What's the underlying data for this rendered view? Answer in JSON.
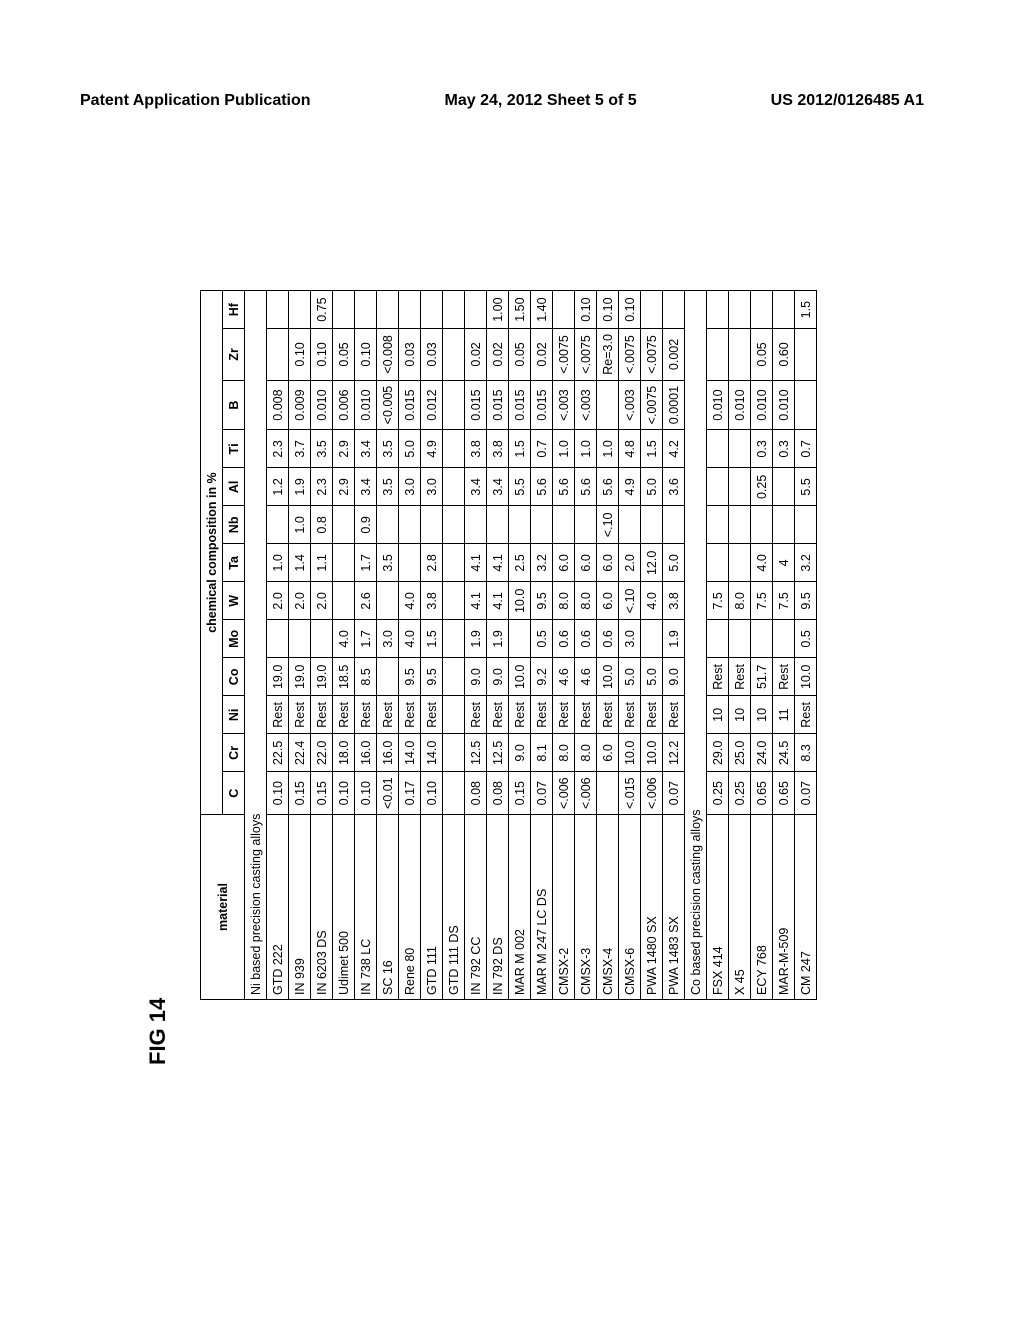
{
  "header": {
    "left": "Patent Application Publication",
    "center": "May 24, 2012  Sheet 5 of 5",
    "right": "US 2012/0126485 A1"
  },
  "figure_label": "FIG 14",
  "table": {
    "super_header": "chemical composition in %",
    "columns": [
      "material",
      "C",
      "Cr",
      "Ni",
      "Co",
      "Mo",
      "W",
      "Ta",
      "Nb",
      "Al",
      "Ti",
      "B",
      "Zr",
      "Hf"
    ],
    "sections": [
      {
        "title": "Ni based precision casting alloys",
        "rows": [
          {
            "material": "GTD 222",
            "C": "0.10",
            "Cr": "22.5",
            "Ni": "Rest",
            "Co": "19.0",
            "Mo": "",
            "W": "2.0",
            "Ta": "1.0",
            "Nb": "",
            "Al": "1.2",
            "Ti": "2.3",
            "B": "0.008",
            "Zr": "",
            "Hf": ""
          },
          {
            "material": "IN 939",
            "C": "0.15",
            "Cr": "22.4",
            "Ni": "Rest",
            "Co": "19.0",
            "Mo": "",
            "W": "2.0",
            "Ta": "1.4",
            "Nb": "1.0",
            "Al": "1.9",
            "Ti": "3.7",
            "B": "0.009",
            "Zr": "0.10",
            "Hf": ""
          },
          {
            "material": "IN 6203 DS",
            "C": "0.15",
            "Cr": "22.0",
            "Ni": "Rest",
            "Co": "19.0",
            "Mo": "",
            "W": "2.0",
            "Ta": "1.1",
            "Nb": "0.8",
            "Al": "2.3",
            "Ti": "3.5",
            "B": "0.010",
            "Zr": "0.10",
            "Hf": "0.75"
          },
          {
            "material": "Udimet 500",
            "C": "0.10",
            "Cr": "18.0",
            "Ni": "Rest",
            "Co": "18.5",
            "Mo": "4.0",
            "W": "",
            "Ta": "",
            "Nb": "",
            "Al": "2.9",
            "Ti": "2.9",
            "B": "0.006",
            "Zr": "0.05",
            "Hf": ""
          },
          {
            "material": "IN 738 LC",
            "C": "0.10",
            "Cr": "16.0",
            "Ni": "Rest",
            "Co": "8.5",
            "Mo": "1.7",
            "W": "2.6",
            "Ta": "1.7",
            "Nb": "0.9",
            "Al": "3.4",
            "Ti": "3.4",
            "B": "0.010",
            "Zr": "0.10",
            "Hf": ""
          },
          {
            "material": "SC 16",
            "C": "<0.01",
            "Cr": "16.0",
            "Ni": "Rest",
            "Co": "",
            "Mo": "3.0",
            "W": "",
            "Ta": "3.5",
            "Nb": "",
            "Al": "3.5",
            "Ti": "3.5",
            "B": "<0.005",
            "Zr": "<0.008",
            "Hf": ""
          },
          {
            "material": "Rene 80",
            "C": "0.17",
            "Cr": "14.0",
            "Ni": "Rest",
            "Co": "9.5",
            "Mo": "4.0",
            "W": "4.0",
            "Ta": "",
            "Nb": "",
            "Al": "3.0",
            "Ti": "5.0",
            "B": "0.015",
            "Zr": "0.03",
            "Hf": ""
          },
          {
            "material": "GTD 111",
            "C": "0.10",
            "Cr": "14.0",
            "Ni": "Rest",
            "Co": "9.5",
            "Mo": "1.5",
            "W": "3.8",
            "Ta": "2.8",
            "Nb": "",
            "Al": "3.0",
            "Ti": "4.9",
            "B": "0.012",
            "Zr": "0.03",
            "Hf": ""
          },
          {
            "material": "GTD 111 DS",
            "C": "",
            "Cr": "",
            "Ni": "",
            "Co": "",
            "Mo": "",
            "W": "",
            "Ta": "",
            "Nb": "",
            "Al": "",
            "Ti": "",
            "B": "",
            "Zr": "",
            "Hf": ""
          },
          {
            "material": "IN 792 CC",
            "C": "0.08",
            "Cr": "12.5",
            "Ni": "Rest",
            "Co": "9.0",
            "Mo": "1.9",
            "W": "4.1",
            "Ta": "4.1",
            "Nb": "",
            "Al": "3.4",
            "Ti": "3.8",
            "B": "0.015",
            "Zr": "0.02",
            "Hf": ""
          },
          {
            "material": "IN 792 DS",
            "C": "0.08",
            "Cr": "12.5",
            "Ni": "Rest",
            "Co": "9.0",
            "Mo": "1.9",
            "W": "4.1",
            "Ta": "4.1",
            "Nb": "",
            "Al": "3.4",
            "Ti": "3.8",
            "B": "0.015",
            "Zr": "0.02",
            "Hf": "1.00"
          },
          {
            "material": "MAR M 002",
            "C": "0.15",
            "Cr": "9.0",
            "Ni": "Rest",
            "Co": "10.0",
            "Mo": "",
            "W": "10.0",
            "Ta": "2.5",
            "Nb": "",
            "Al": "5.5",
            "Ti": "1.5",
            "B": "0.015",
            "Zr": "0.05",
            "Hf": "1.50"
          },
          {
            "material": "MAR M 247 LC DS",
            "C": "0.07",
            "Cr": "8.1",
            "Ni": "Rest",
            "Co": "9.2",
            "Mo": "0.5",
            "W": "9.5",
            "Ta": "3.2",
            "Nb": "",
            "Al": "5.6",
            "Ti": "0.7",
            "B": "0.015",
            "Zr": "0.02",
            "Hf": "1.40"
          },
          {
            "material": "CMSX-2",
            "C": "<.006",
            "Cr": "8.0",
            "Ni": "Rest",
            "Co": "4.6",
            "Mo": "0.6",
            "W": "8.0",
            "Ta": "6.0",
            "Nb": "",
            "Al": "5.6",
            "Ti": "1.0",
            "B": "<.003",
            "Zr": "<.0075",
            "Hf": ""
          },
          {
            "material": "CMSX-3",
            "C": "<.006",
            "Cr": "8.0",
            "Ni": "Rest",
            "Co": "4.6",
            "Mo": "0.6",
            "W": "8.0",
            "Ta": "6.0",
            "Nb": "",
            "Al": "5.6",
            "Ti": "1.0",
            "B": "<.003",
            "Zr": "<.0075",
            "Hf": "0.10"
          },
          {
            "material": "CMSX-4",
            "C": "",
            "Cr": "6.0",
            "Ni": "Rest",
            "Co": "10.0",
            "Mo": "0.6",
            "W": "6.0",
            "Ta": "6.0",
            "Nb": "<.10",
            "Al": "5.6",
            "Ti": "1.0",
            "B": "",
            "Zr": "Re=3.0",
            "Hf": "0.10"
          },
          {
            "material": "CMSX-6",
            "C": "<.015",
            "Cr": "10.0",
            "Ni": "Rest",
            "Co": "5.0",
            "Mo": "3.0",
            "W": "<.10",
            "Ta": "2.0",
            "Nb": "",
            "Al": "4.9",
            "Ti": "4.8",
            "B": "<.003",
            "Zr": "<.0075",
            "Hf": "0.10"
          },
          {
            "material": "PWA 1480 SX",
            "C": "<.006",
            "Cr": "10.0",
            "Ni": "Rest",
            "Co": "5.0",
            "Mo": "",
            "W": "4.0",
            "Ta": "12.0",
            "Nb": "",
            "Al": "5.0",
            "Ti": "1.5",
            "B": "<.0075",
            "Zr": "<.0075",
            "Hf": ""
          },
          {
            "material": "PWA 1483 SX",
            "C": "0.07",
            "Cr": "12.2",
            "Ni": "Rest",
            "Co": "9.0",
            "Mo": "1.9",
            "W": "3.8",
            "Ta": "5.0",
            "Nb": "",
            "Al": "3.6",
            "Ti": "4.2",
            "B": "0.0001",
            "Zr": "0.002",
            "Hf": ""
          }
        ]
      },
      {
        "title": "Co based precision casting alloys",
        "rows": [
          {
            "material": "FSX 414",
            "C": "0.25",
            "Cr": "29.0",
            "Ni": "10",
            "Co": "Rest",
            "Mo": "",
            "W": "7.5",
            "Ta": "",
            "Nb": "",
            "Al": "",
            "Ti": "",
            "B": "0.010",
            "Zr": "",
            "Hf": ""
          },
          {
            "material": "X 45",
            "C": "0.25",
            "Cr": "25.0",
            "Ni": "10",
            "Co": "Rest",
            "Mo": "",
            "W": "8.0",
            "Ta": "",
            "Nb": "",
            "Al": "",
            "Ti": "",
            "B": "0.010",
            "Zr": "",
            "Hf": ""
          },
          {
            "material": "ECY 768",
            "C": "0.65",
            "Cr": "24.0",
            "Ni": "10",
            "Co": "51.7",
            "Mo": "",
            "W": "7.5",
            "Ta": "4.0",
            "Nb": "",
            "Al": "0.25",
            "Ti": "0.3",
            "B": "0.010",
            "Zr": "0.05",
            "Hf": ""
          },
          {
            "material": "MAR-M-509",
            "C": "0.65",
            "Cr": "24.5",
            "Ni": "11",
            "Co": "Rest",
            "Mo": "",
            "W": "7.5",
            "Ta": "4",
            "Nb": "",
            "Al": "",
            "Ti": "0.3",
            "B": "0.010",
            "Zr": "0.60",
            "Hf": ""
          },
          {
            "material": "CM 247",
            "C": "0.07",
            "Cr": "8.3",
            "Ni": "Rest",
            "Co": "10.0",
            "Mo": "0.5",
            "W": "9.5",
            "Ta": "3.2",
            "Nb": "",
            "Al": "5.5",
            "Ti": "0.7",
            "B": "",
            "Zr": "",
            "Hf": "1.5"
          }
        ]
      }
    ]
  }
}
